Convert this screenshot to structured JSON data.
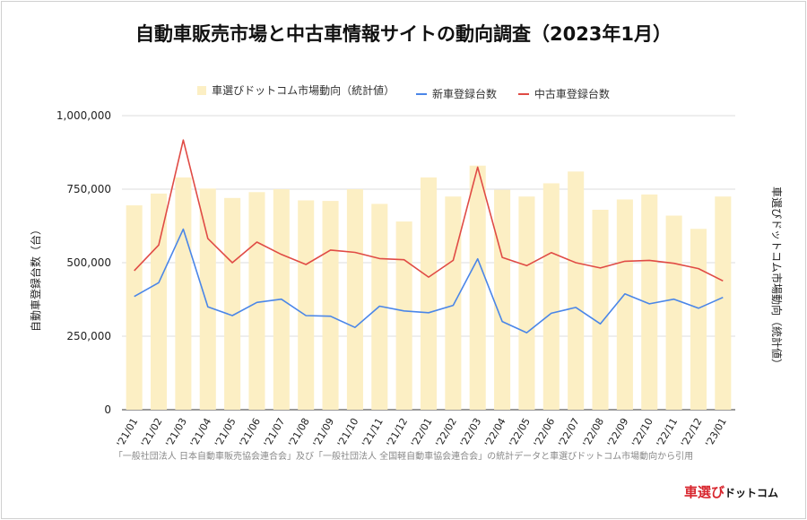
{
  "title": "自動車販売市場と中古車情報サイトの動向調査（2023年1月）",
  "legend": {
    "bar": "車選びドットコム市場動向（統計値）",
    "new": "新車登録台数",
    "used": "中古車登録台数"
  },
  "source": "「一般社団法人 日本自動車販売協会連合会」及び「一般社団法人 全国軽自動車協会連合会」の統計データと車選びドットコム市場動向から引用",
  "logo": {
    "red": "車選び",
    "black": "ドットコム"
  },
  "colors": {
    "bar": "#fcefc4",
    "new": "#4a86e8",
    "used": "#e04b45"
  },
  "chart_data": {
    "type": "bar",
    "categories": [
      "'21/01",
      "'21/02",
      "'21/03",
      "'21/04",
      "'21/05",
      "'21/06",
      "'21/07",
      "'21/08",
      "'21/09",
      "'21/10",
      "'21/11",
      "'21/12",
      "'22/01",
      "'22/02",
      "'22/03",
      "'22/04",
      "'22/05",
      "'22/06",
      "'22/07",
      "'22/08",
      "'22/09",
      "'22/10",
      "'22/11",
      "'22/12",
      "'23/01"
    ],
    "ylabel": "自動車登録台数（台）",
    "y2label": "車選びドットコム市場動向（統計値）",
    "ylim": [
      0,
      1000000
    ],
    "yticks": [
      "0",
      "250,000",
      "500,000",
      "750,000",
      "1,000,000"
    ],
    "grid": true,
    "legend_position": "top",
    "series": [
      {
        "name": "車選びドットコム市場動向（統計値）",
        "type": "bar",
        "values": [
          695000,
          735000,
          790000,
          752000,
          720000,
          740000,
          750000,
          712000,
          710000,
          750000,
          700000,
          640000,
          790000,
          725000,
          830000,
          748000,
          725000,
          770000,
          810000,
          680000,
          715000,
          732000,
          660000,
          615000,
          725000
        ]
      },
      {
        "name": "新車登録台数",
        "type": "line",
        "values": [
          385000,
          432000,
          614000,
          350000,
          320000,
          365000,
          376000,
          320000,
          318000,
          280000,
          352000,
          336000,
          330000,
          355000,
          513000,
          300000,
          262000,
          328000,
          348000,
          292000,
          394000,
          360000,
          376000,
          345000,
          382000
        ]
      },
      {
        "name": "中古車登録台数",
        "type": "line",
        "values": [
          473000,
          560000,
          917000,
          582000,
          500000,
          570000,
          528000,
          494000,
          543000,
          535000,
          514000,
          510000,
          451000,
          508000,
          825000,
          518000,
          490000,
          534000,
          500000,
          482000,
          505000,
          508000,
          498000,
          480000,
          438000
        ]
      }
    ]
  }
}
